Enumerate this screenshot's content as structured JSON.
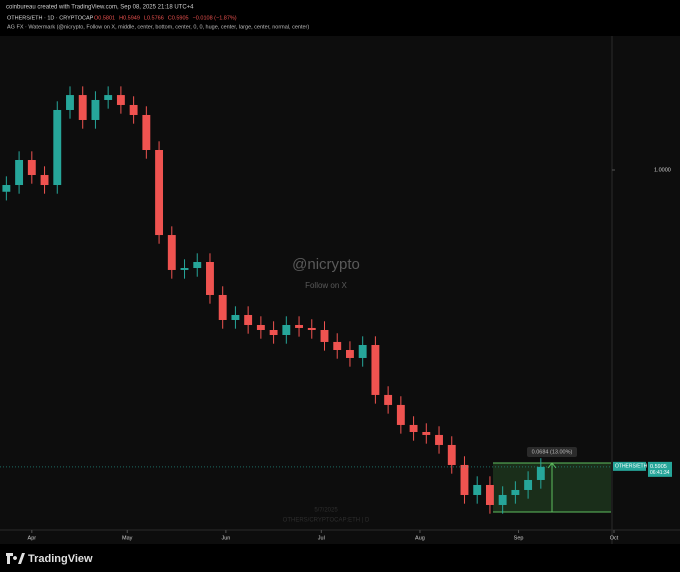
{
  "chart_data": {
    "type": "candlestick",
    "header": "coinbureau created with TradingView.com, Sep 08, 2025 21:18 UTC+4",
    "symbol": "OTHERS/ETH · 1D · CRYPTOCAP",
    "ohlc_legend": [
      "O0.5801",
      "H0.5949",
      "L0.5766",
      "C0.5905",
      "−0.0108 (−1.87%)"
    ],
    "indicator": "AG FX · Watermark (@nicrypto, Follow on X, middle, center, bottom, center, 0, 0, huge, center, large, center, normal, center)",
    "watermark": "@nicrypto",
    "watermark_sub": "Follow on X",
    "faint_date": "5/7/2025",
    "faint_symbol": "OTHERS/CRYPTOCAP:ETH | D",
    "measure_label": "0.0684 (13.00%)",
    "price_tag": {
      "name": "OTHERS/ETH",
      "value": 0.5905,
      "countdown": "06:41:34"
    },
    "brand": "TradingView",
    "x": [
      -8,
      -4,
      0,
      4,
      8,
      12,
      16,
      20,
      24,
      28,
      32,
      36,
      40,
      44,
      48,
      52,
      56,
      60,
      64,
      68,
      72,
      76,
      80,
      84,
      88,
      92,
      96,
      100,
      104,
      108,
      112,
      116,
      120,
      124,
      128,
      132,
      136,
      140,
      144,
      148,
      152,
      156,
      160
    ],
    "open": [
      0.97,
      0.9793,
      1.0138,
      0.9931,
      0.9793,
      1.0828,
      1.1034,
      1.069,
      1.0966,
      1.1034,
      1.0897,
      1.0759,
      1.0276,
      0.9103,
      0.8621,
      0.8648,
      0.8731,
      0.8276,
      0.7931,
      0.8,
      0.7862,
      0.7793,
      0.7724,
      0.7862,
      0.7821,
      0.7793,
      0.7628,
      0.7517,
      0.7407,
      0.7586,
      0.6897,
      0.6759,
      0.6483,
      0.6386,
      0.6345,
      0.6207,
      0.5931,
      0.5517,
      0.5655,
      0.5379,
      0.5517,
      0.5586,
      0.5724
    ],
    "high": [
      0.9913,
      1.0258,
      1.0258,
      1.0051,
      1.0948,
      1.1154,
      1.1154,
      1.1086,
      1.1154,
      1.1154,
      1.1017,
      1.0879,
      1.0396,
      0.9223,
      0.8768,
      0.8851,
      0.8851,
      0.8396,
      0.812,
      0.812,
      0.7982,
      0.7913,
      0.7982,
      0.7982,
      0.7941,
      0.7913,
      0.7748,
      0.7637,
      0.7706,
      0.7706,
      0.7017,
      0.6879,
      0.6603,
      0.6506,
      0.6465,
      0.6327,
      0.6051,
      0.5775,
      0.5775,
      0.5637,
      0.5706,
      0.5844,
      0.6025
    ],
    "low": [
      0.958,
      0.9673,
      0.9811,
      0.9673,
      0.9673,
      1.0708,
      1.057,
      1.057,
      1.0846,
      1.0777,
      1.0639,
      1.0156,
      0.8983,
      0.8501,
      0.8501,
      0.8528,
      0.8156,
      0.7811,
      0.7811,
      0.7742,
      0.7673,
      0.7604,
      0.7604,
      0.7701,
      0.7673,
      0.7508,
      0.7397,
      0.7287,
      0.7287,
      0.6777,
      0.6639,
      0.6363,
      0.6266,
      0.6225,
      0.6087,
      0.5811,
      0.5397,
      0.5397,
      0.5259,
      0.5259,
      0.5397,
      0.5466,
      0.5604
    ],
    "close": [
      0.9793,
      1.0138,
      0.9931,
      0.9793,
      1.0828,
      1.1034,
      1.069,
      1.0966,
      1.1034,
      1.0897,
      1.0759,
      1.0276,
      0.9103,
      0.8621,
      0.8648,
      0.8731,
      0.8276,
      0.7931,
      0.8,
      0.7862,
      0.7793,
      0.7724,
      0.7862,
      0.7821,
      0.7793,
      0.7628,
      0.7517,
      0.7407,
      0.7586,
      0.6897,
      0.6759,
      0.6483,
      0.6386,
      0.6345,
      0.6207,
      0.5931,
      0.5517,
      0.5655,
      0.5379,
      0.5517,
      0.5586,
      0.5724,
      0.5905
    ],
    "up_color": "#26a69a",
    "down_color": "#ef5350",
    "xlim": [
      -10,
      183
    ],
    "xticks": [
      {
        "value": 0,
        "label": "Apr"
      },
      {
        "value": 30,
        "label": "May"
      },
      {
        "value": 61,
        "label": "Jun"
      },
      {
        "value": 91,
        "label": "Jul"
      },
      {
        "value": 122,
        "label": "Aug"
      },
      {
        "value": 153,
        "label": "Sep"
      },
      {
        "value": 183,
        "label": "Oct"
      }
    ],
    "ylim": [
      0.5034,
      1.1821
    ],
    "yticks": [
      {
        "value": 1,
        "label": "1.0000"
      }
    ]
  }
}
